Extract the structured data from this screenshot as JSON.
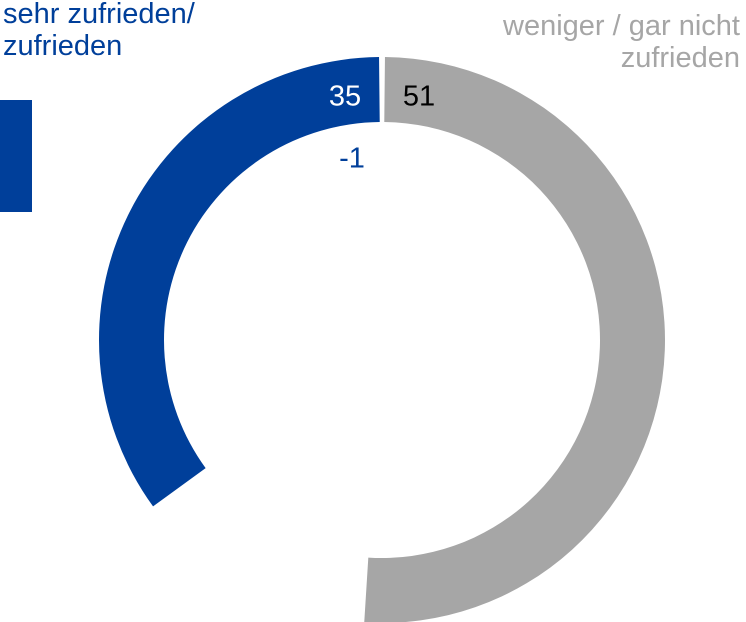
{
  "chart_data": {
    "type": "donut",
    "categories": [
      "sehr zufrieden/\nzufrieden",
      "weniger / gar nicht\nzufrieden"
    ],
    "values": [
      35,
      51
    ],
    "colors": [
      "#003f9a",
      "#a6a6a6"
    ],
    "label_colors": [
      "#ffffff",
      "#000000"
    ],
    "change": -1
  }
}
